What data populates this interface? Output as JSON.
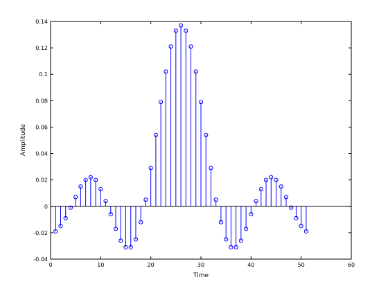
{
  "chart_data": {
    "type": "stem",
    "xlabel": "Time",
    "ylabel": "Amplitude",
    "xlim": [
      0,
      60
    ],
    "ylim": [
      -0.04,
      0.14
    ],
    "xticks": [
      0,
      10,
      20,
      30,
      40,
      50,
      60
    ],
    "yticks": [
      -0.04,
      -0.02,
      0,
      0.02,
      0.04,
      0.06,
      0.08,
      0.1,
      0.12,
      0.14
    ],
    "xtick_labels": [
      "0",
      "10",
      "20",
      "30",
      "40",
      "50",
      "60"
    ],
    "ytick_labels": [
      "-0.04",
      "-0.02",
      "0",
      "0.02",
      "0.04",
      "0.06",
      "0.08",
      "0.1",
      "0.12",
      "0.14"
    ],
    "grid": false,
    "series": [
      {
        "color": "#0000ff",
        "marker": "open-circle",
        "x": [
          1,
          2,
          3,
          4,
          5,
          6,
          7,
          8,
          9,
          10,
          11,
          12,
          13,
          14,
          15,
          16,
          17,
          18,
          19,
          20,
          21,
          22,
          23,
          24,
          25,
          26,
          27,
          28,
          29,
          30,
          31,
          32,
          33,
          34,
          35,
          36,
          37,
          38,
          39,
          40,
          41,
          42,
          43,
          44,
          45,
          46,
          47,
          48,
          49,
          50,
          51
        ],
        "y": [
          -0.019,
          -0.015,
          -0.009,
          -0.001,
          0.007,
          0.015,
          0.02,
          0.022,
          0.02,
          0.013,
          0.004,
          -0.006,
          -0.017,
          -0.026,
          -0.031,
          -0.031,
          -0.025,
          -0.012,
          0.005,
          0.029,
          0.054,
          0.079,
          0.102,
          0.121,
          0.133,
          0.137,
          0.133,
          0.121,
          0.102,
          0.079,
          0.054,
          0.029,
          0.005,
          -0.012,
          -0.025,
          -0.031,
          -0.031,
          -0.026,
          -0.017,
          -0.006,
          0.004,
          0.013,
          0.02,
          0.022,
          0.02,
          0.015,
          0.007,
          -0.001,
          -0.009,
          -0.015,
          -0.019
        ]
      }
    ],
    "baseline": 0,
    "colors": {
      "axes": "#000000",
      "stem": "#0000ff",
      "baseline": "#000000"
    }
  }
}
